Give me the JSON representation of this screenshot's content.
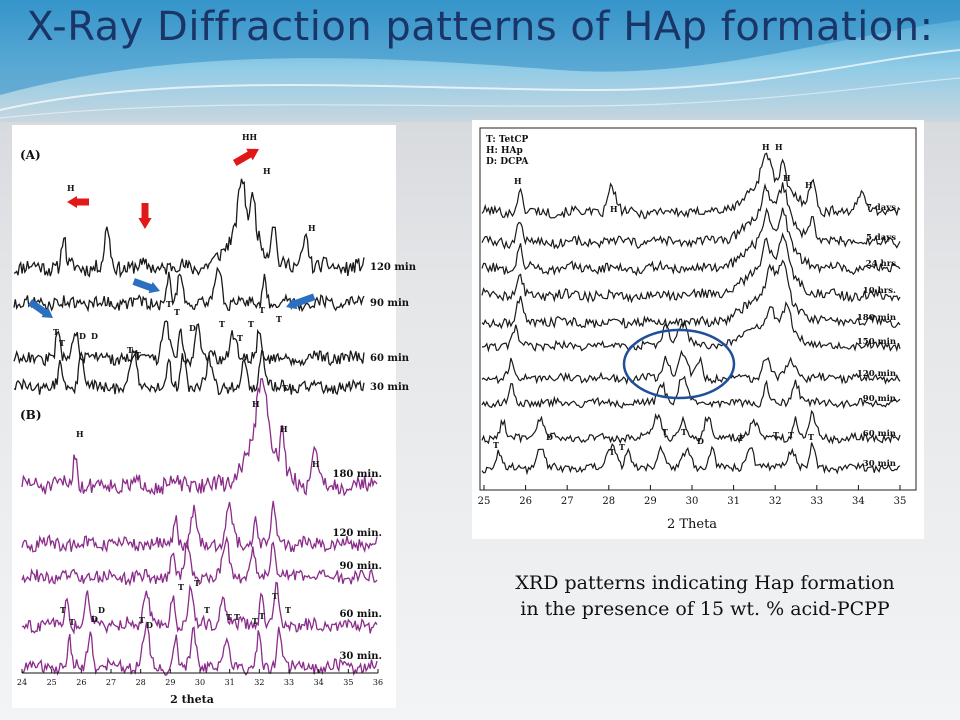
{
  "slide": {
    "title": "X-Ray Diffraction patterns of HAp formation:",
    "caption_line1": "XRD patterns indicating Hap formation",
    "caption_line2": "in the presence of 15 wt. % acid-PCPP"
  },
  "colors": {
    "title_text": "#1a3567",
    "header_blue": "#3f9fd0",
    "trace_black": "#1a1a1a",
    "trace_purple": "#8a2c8a",
    "arrow_red": "#e01818",
    "arrow_blue": "#2a6fc0",
    "circle_blue": "#1f4f9a"
  },
  "chart_data": [
    {
      "type": "line",
      "panel_label": "(A)",
      "xlim": [
        24,
        36
      ],
      "series": [
        {
          "name": "120 min",
          "peaks": [
            25.7,
            27.2,
            31.8,
            32.2,
            32.9,
            34.0
          ]
        },
        {
          "name": "90 min",
          "peaks": [
            29.3,
            29.7,
            31.0,
            32.6
          ]
        },
        {
          "name": "60 min",
          "peaks": [
            25.5,
            26.1,
            29.2,
            29.7,
            30.3,
            31.5,
            32.4
          ]
        },
        {
          "name": "30 min",
          "peaks": [
            25.6,
            26.3,
            28.1,
            29.3,
            29.8,
            30.7,
            31.9,
            32.5
          ]
        }
      ],
      "peak_labels": [
        "H",
        "HH",
        "H",
        "H",
        "T",
        "T",
        "T",
        "T",
        "D",
        "D",
        "T",
        "T",
        "T",
        "T",
        "D",
        "T",
        "T",
        "T",
        "T"
      ]
    },
    {
      "type": "line",
      "panel_label": "(B)",
      "xlabel": "2 theta",
      "xlim": [
        24,
        36
      ],
      "x_ticks": [
        "24",
        "25",
        "26",
        "27",
        "28",
        "29",
        "30",
        "31",
        "32",
        "33",
        "34",
        "35",
        "36"
      ],
      "series": [
        {
          "name": "180 min.",
          "peaks": [
            25.8,
            32.0,
            32.2,
            32.8,
            33.9
          ]
        },
        {
          "name": "120 min.",
          "peaks": [
            29.2,
            29.8,
            31.0,
            31.9,
            32.5
          ]
        },
        {
          "name": "90 min.",
          "peaks": [
            29.1,
            29.6,
            30.9,
            31.8,
            32.5
          ]
        },
        {
          "name": "60 min.",
          "peaks": [
            25.5,
            26.2,
            28.2,
            29.1,
            29.7,
            30.8,
            32.1,
            32.6
          ]
        },
        {
          "name": "30 min.",
          "peaks": [
            25.6,
            26.3,
            28.2,
            29.2,
            29.8,
            30.9,
            32.0,
            32.7
          ]
        }
      ],
      "peak_labels": [
        "H",
        "H",
        "H",
        "H",
        "T",
        "T",
        "T",
        "D",
        "D",
        "T",
        "T",
        "D",
        "T",
        "T",
        "T",
        "T",
        "T",
        "T",
        "T"
      ]
    },
    {
      "type": "line",
      "xlabel": "2 Theta",
      "xlim": [
        25,
        35
      ],
      "x_ticks": [
        "25",
        "26",
        "27",
        "28",
        "29",
        "30",
        "31",
        "32",
        "33",
        "34",
        "35"
      ],
      "legend": [
        "T: TetCP",
        "H: HAp",
        "D: DCPA"
      ],
      "series": [
        {
          "name": "7 days",
          "peaks": [
            25.9,
            28.1,
            31.8,
            32.2,
            32.9,
            34.1
          ]
        },
        {
          "name": "5 days",
          "peaks": [
            25.9,
            31.8,
            32.2,
            32.9
          ]
        },
        {
          "name": "24 hrs",
          "peaks": [
            25.9,
            31.8,
            32.2
          ]
        },
        {
          "name": "10 hrs.",
          "peaks": [
            25.9,
            31.8,
            32.2
          ]
        },
        {
          "name": "180 min",
          "peaks": [
            25.9,
            31.9,
            32.2
          ]
        },
        {
          "name": "150 min",
          "peaks": [
            25.8,
            29.4,
            29.8,
            31.9,
            32.3
          ]
        },
        {
          "name": "120 min",
          "peaks": [
            25.7,
            29.4,
            29.8,
            30.2,
            31.8,
            32.4
          ]
        },
        {
          "name": "90 min",
          "peaks": [
            25.7,
            29.3,
            29.8,
            31.8,
            32.5
          ]
        },
        {
          "name": "60 min",
          "peaks": [
            25.5,
            26.4,
            29.2,
            29.8,
            30.4,
            31.5,
            32.5,
            32.9
          ]
        },
        {
          "name": "30 min",
          "peaks": [
            25.4,
            26.4,
            28.1,
            28.5,
            29.3,
            29.9,
            30.5,
            31.4,
            32.4,
            32.9
          ]
        }
      ],
      "peak_labels": [
        "H",
        "H",
        "H",
        "H",
        "H",
        "H",
        "T",
        "D",
        "T",
        "T",
        "T",
        "T",
        "D",
        "T",
        "T",
        "T",
        "T"
      ]
    }
  ]
}
